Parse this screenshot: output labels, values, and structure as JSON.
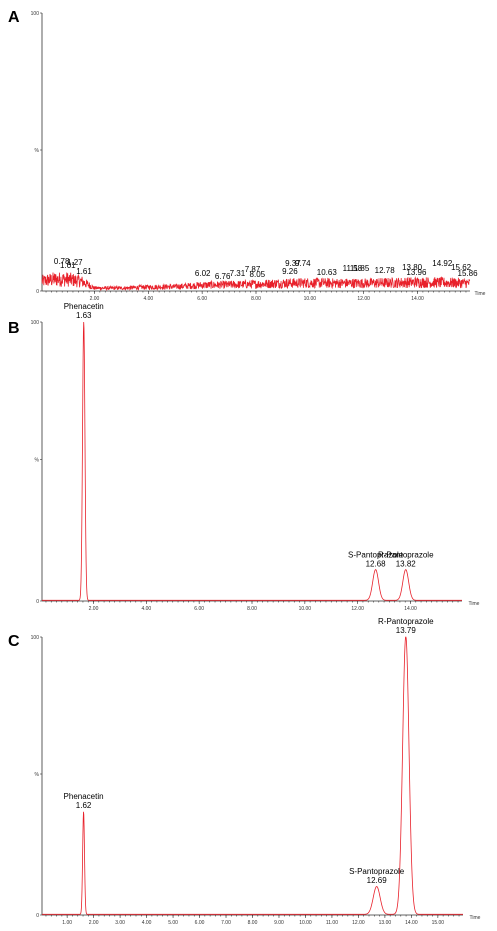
{
  "colors": {
    "trace": "#e8202a",
    "axis": "#333333"
  },
  "chart_data": [
    {
      "type": "line",
      "panel_label": "A",
      "xlabel": "Time",
      "xlim": [
        0.05,
        15.95
      ],
      "ylim": [
        0,
        100
      ],
      "y_ticks": [
        "100",
        "%",
        "0"
      ],
      "x_ticks": [
        "2.00",
        "4.00",
        "6.00",
        "8.00",
        "10.00",
        "12.00",
        "14.00"
      ],
      "x_tick_values": [
        2,
        4,
        6,
        8,
        10,
        12,
        14
      ],
      "peak_labels": [
        {
          "x": 0.78,
          "label": "0.78"
        },
        {
          "x": 1.01,
          "label": "1.01"
        },
        {
          "x": 1.27,
          "label": "1.27"
        },
        {
          "x": 1.61,
          "label": "1.61"
        },
        {
          "x": 6.02,
          "label": "6.02"
        },
        {
          "x": 6.76,
          "label": "6.76"
        },
        {
          "x": 7.31,
          "label": "7.31"
        },
        {
          "x": 7.87,
          "label": "7.87"
        },
        {
          "x": 8.05,
          "label": "8.05"
        },
        {
          "x": 9.26,
          "label": "9.26"
        },
        {
          "x": 9.37,
          "label": "9.37"
        },
        {
          "x": 9.74,
          "label": "9.74"
        },
        {
          "x": 10.63,
          "label": "10.63"
        },
        {
          "x": 11.58,
          "label": "11.58"
        },
        {
          "x": 11.85,
          "label": "11.85"
        },
        {
          "x": 12.78,
          "label": "12.78"
        },
        {
          "x": 13.8,
          "label": "13.80"
        },
        {
          "x": 13.96,
          "label": "13.96"
        },
        {
          "x": 14.92,
          "label": "14.92"
        },
        {
          "x": 15.62,
          "label": "15.62"
        },
        {
          "x": 15.86,
          "label": "15.86"
        }
      ],
      "noise_profile": [
        [
          0.05,
          5
        ],
        [
          0.5,
          6
        ],
        [
          1.0,
          6
        ],
        [
          1.5,
          5
        ],
        [
          1.8,
          3
        ],
        [
          2.0,
          1.5
        ],
        [
          3.0,
          1.5
        ],
        [
          4.0,
          2
        ],
        [
          5.0,
          2.2
        ],
        [
          6.0,
          3
        ],
        [
          7.0,
          3.2
        ],
        [
          8.0,
          3.5
        ],
        [
          9.0,
          4
        ],
        [
          10.0,
          4.2
        ],
        [
          11.0,
          4
        ],
        [
          12.0,
          4
        ],
        [
          13.0,
          4.2
        ],
        [
          14.0,
          4.5
        ],
        [
          15.0,
          4.3
        ],
        [
          15.95,
          4
        ]
      ],
      "peaks": []
    },
    {
      "type": "line",
      "panel_label": "B",
      "xlabel": "Time",
      "xlim": [
        0.05,
        15.95
      ],
      "ylim": [
        0,
        100
      ],
      "y_ticks": [
        "100",
        "%",
        "0"
      ],
      "x_ticks": [
        "2.00",
        "4.00",
        "6.00",
        "8.00",
        "10.00",
        "12.00",
        "14.00"
      ],
      "x_tick_values": [
        2,
        4,
        6,
        8,
        10,
        12,
        14
      ],
      "peaks": [
        {
          "name": "Phenacetin",
          "rt": 1.63,
          "rt_label": "1.63",
          "height": 100,
          "width": 0.045
        },
        {
          "name": "S-Pantoprazole",
          "rt": 12.68,
          "rt_label": "12.68",
          "height": 11,
          "width": 0.11
        },
        {
          "name": "R-Pantoprazole",
          "rt": 13.82,
          "rt_label": "13.82",
          "height": 11,
          "width": 0.11
        }
      ]
    },
    {
      "type": "line",
      "panel_label": "C",
      "xlabel": "Time",
      "xlim": [
        0.05,
        15.95
      ],
      "ylim": [
        0,
        100
      ],
      "y_ticks": [
        "100",
        "%",
        "0"
      ],
      "x_ticks": [
        "1.00",
        "2.00",
        "3.00",
        "4.00",
        "5.00",
        "6.00",
        "7.00",
        "8.00",
        "9.00",
        "10.00",
        "11.00",
        "12.00",
        "13.00",
        "14.00",
        "15.00"
      ],
      "x_tick_values": [
        1,
        2,
        3,
        4,
        5,
        6,
        7,
        8,
        9,
        10,
        11,
        12,
        13,
        14,
        15
      ],
      "peaks": [
        {
          "name": "Phenacetin",
          "rt": 1.62,
          "rt_label": "1.62",
          "height": 37,
          "width": 0.035
        },
        {
          "name": "S-Pantoprazole",
          "rt": 12.69,
          "rt_label": "12.69",
          "height": 10,
          "width": 0.13
        },
        {
          "name": "R-Pantoprazole",
          "rt": 13.79,
          "rt_label": "13.79",
          "height": 100,
          "width": 0.12
        }
      ]
    }
  ]
}
